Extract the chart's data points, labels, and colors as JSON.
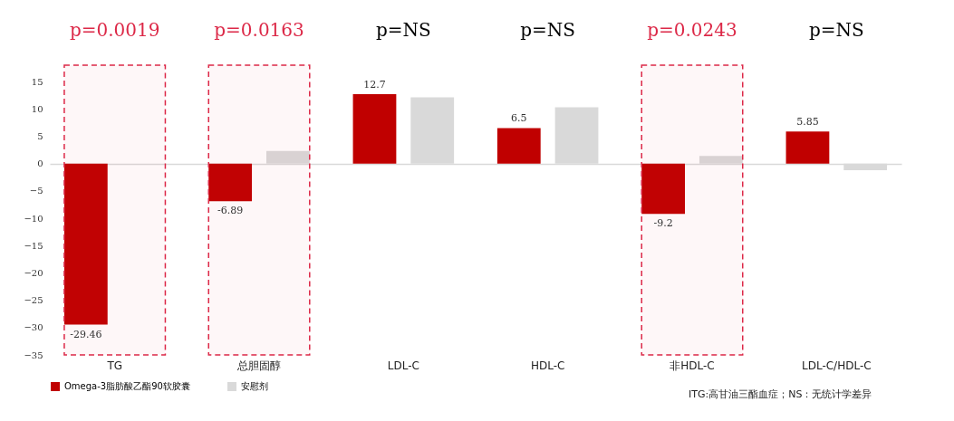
{
  "chart_data": {
    "type": "bar",
    "categories": [
      "TG",
      "总胆固醇",
      "LDL-C",
      "HDL-C",
      "非HDL-C",
      "LDL-C/HDL-C"
    ],
    "series": [
      {
        "name": "Omega-3脂肪酸乙酯90软胶囊",
        "color": "#c00000",
        "values": [
          -29.46,
          -6.89,
          12.7,
          6.5,
          -9.2,
          5.85
        ],
        "value_labels": [
          "-29.46",
          "-6.89",
          "12.7",
          "6.5",
          "-9.2",
          "5.85"
        ]
      },
      {
        "name": "安慰剂",
        "color": "#d9d9d9",
        "values": [
          null,
          2.3,
          12.1,
          10.3,
          1.4,
          -1.2
        ]
      }
    ],
    "ylim": [
      -35,
      18
    ],
    "yticks": [
      -35,
      -30,
      -25,
      -20,
      -15,
      -10,
      -5,
      0,
      5,
      10,
      15
    ],
    "legend": "bottom",
    "bands": [
      {
        "axis": "x",
        "from": "TG",
        "to": "TG",
        "color": "#dc2847"
      },
      {
        "axis": "x",
        "from": "总胆固醇",
        "to": "总胆固醇",
        "color": "#dc2847"
      },
      {
        "axis": "x",
        "from": "非HDL-C",
        "to": "非HDL-C",
        "color": "#dc2847"
      }
    ],
    "annotations": [
      "p=0.0019",
      "p=0.0163",
      "p=NS",
      "p=NS",
      "p=0.0243",
      "p=NS",
      "ITG:高甘油三酯血症；NS：无统计学差异"
    ]
  }
}
